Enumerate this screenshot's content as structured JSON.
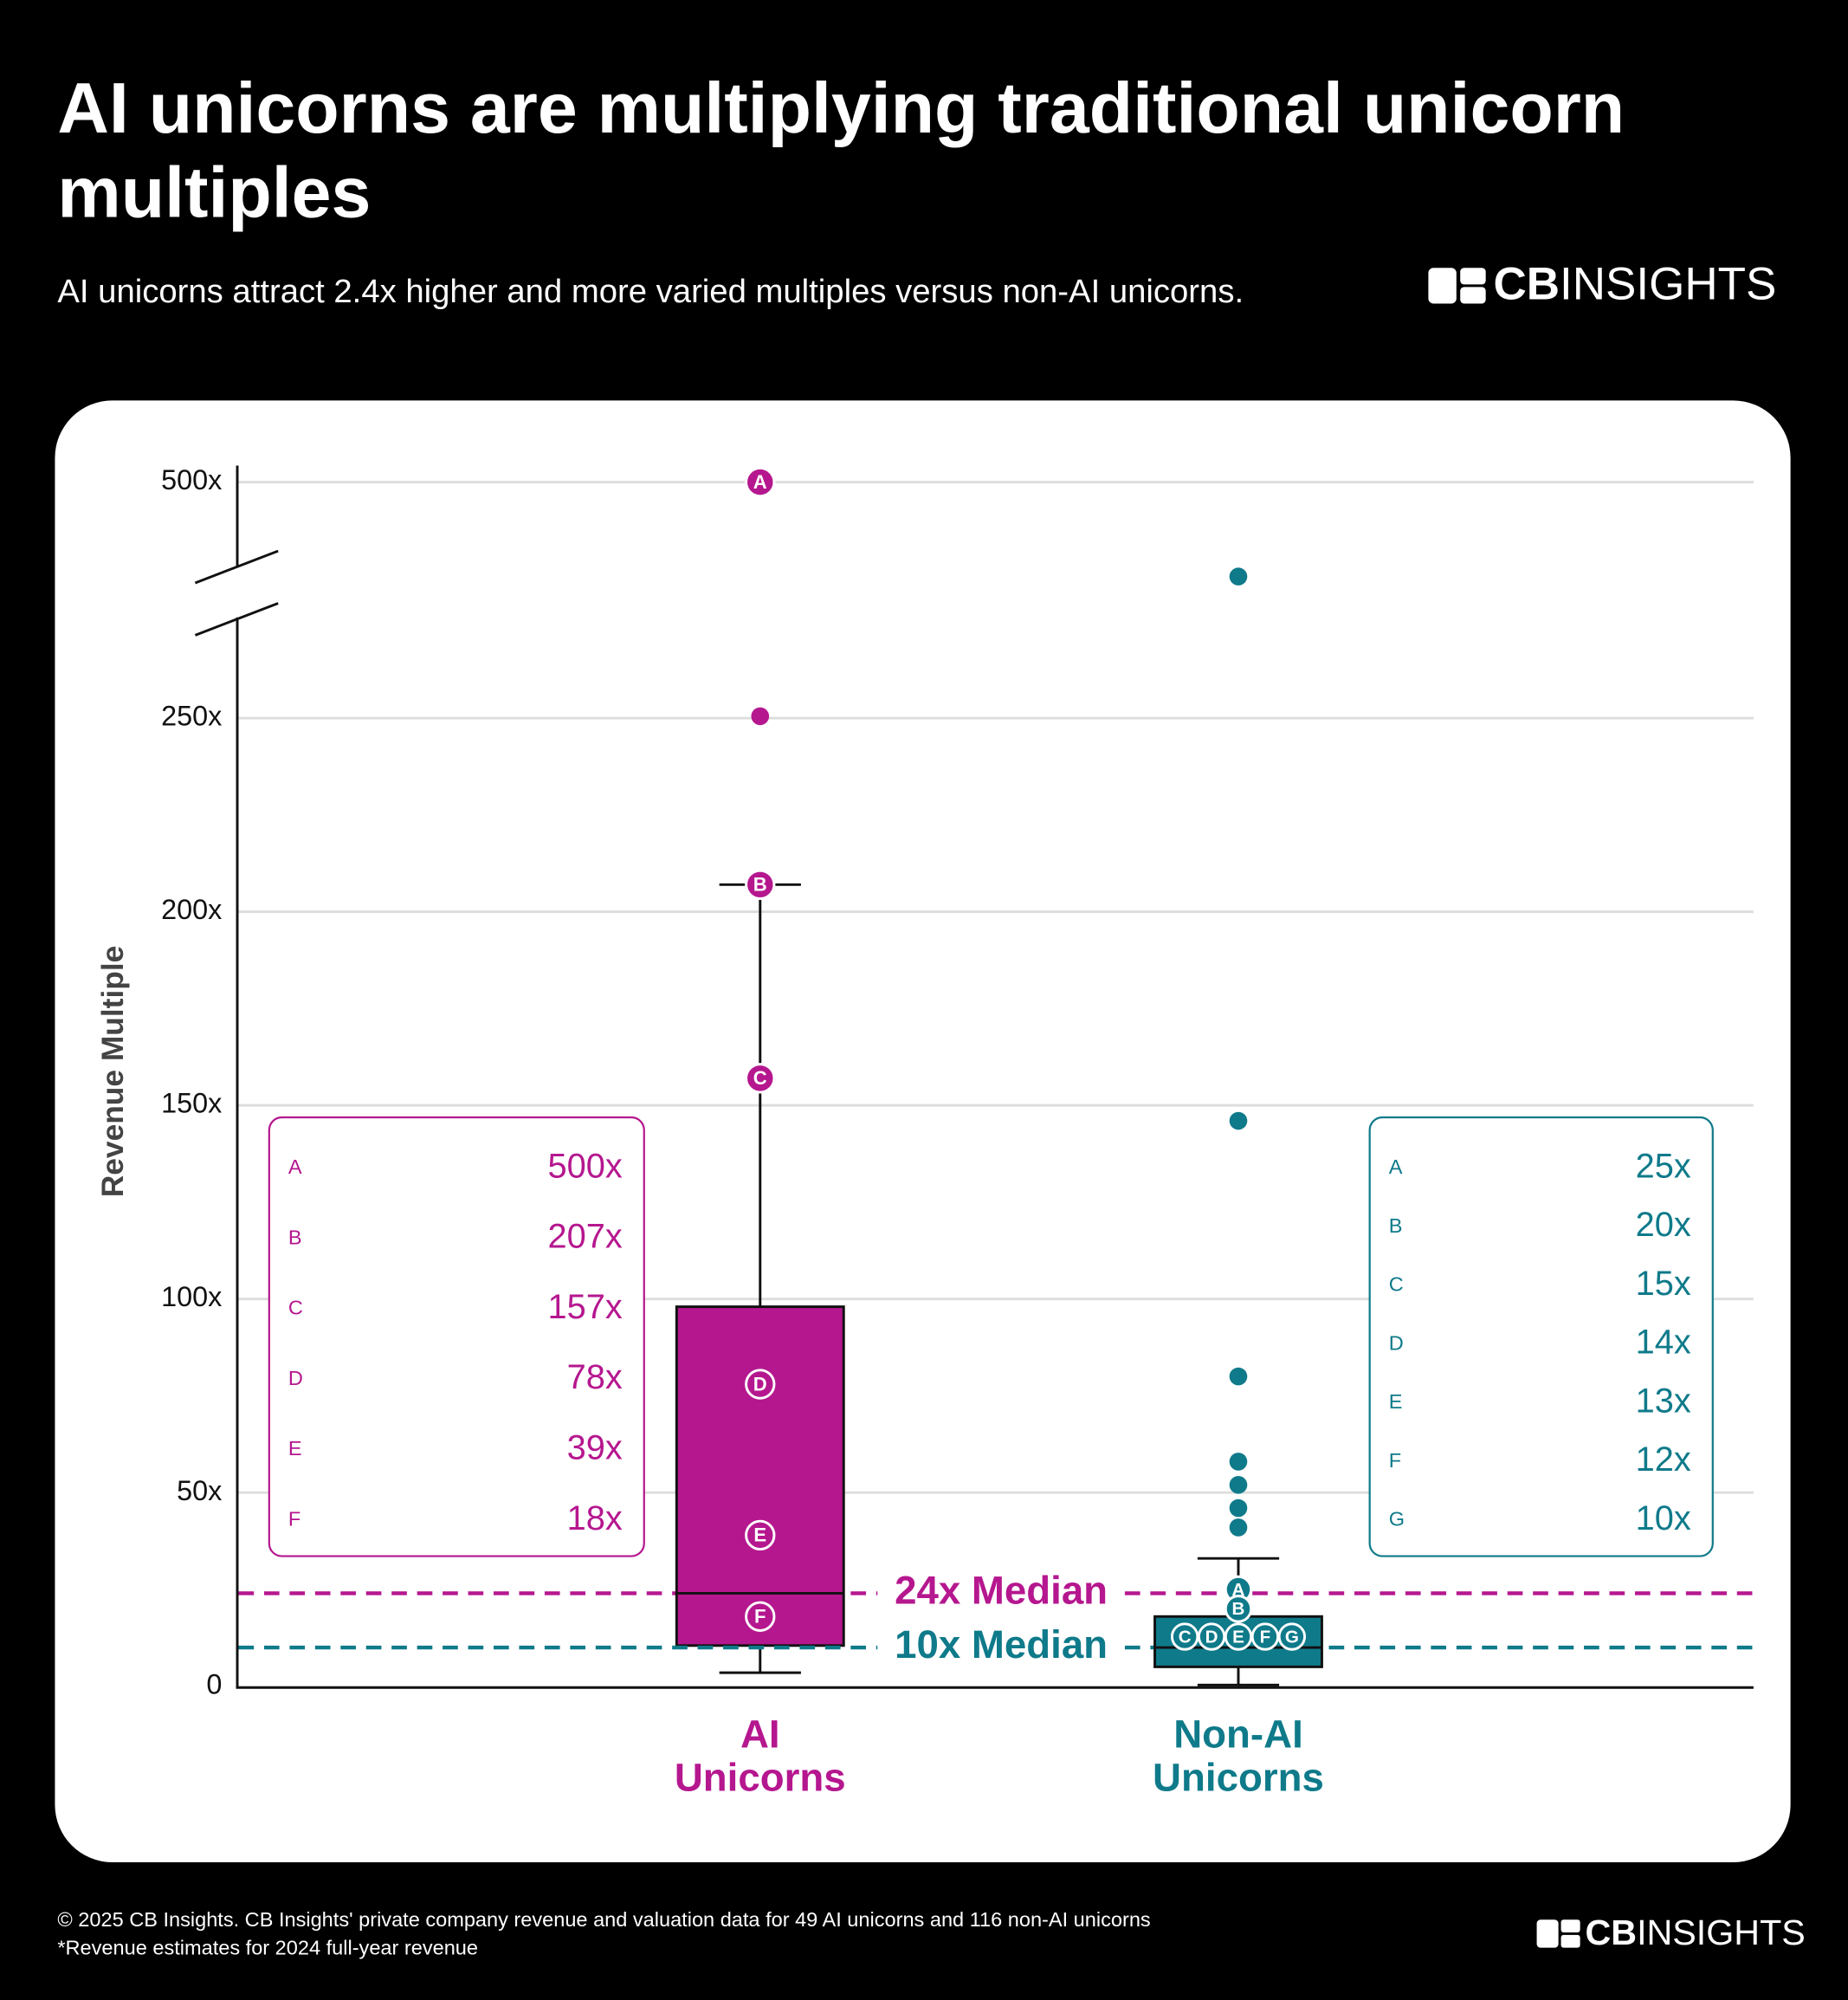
{
  "chart_data": {
    "type": "box",
    "title": "AI unicorns are multiplying traditional unicorn multiples",
    "subtitle": "AI unicorns attract 2.4x higher and more varied multiples versus non-AI unicorns.",
    "y_label": "Revenue Multiple",
    "ylim": [
      0,
      500
    ],
    "yticks": [
      0,
      {
        "value": 50,
        "label": "50x"
      },
      {
        "value": 100,
        "label": "100x"
      },
      {
        "value": 150,
        "label": "150x"
      },
      {
        "value": 200,
        "label": "200x"
      },
      {
        "value": 250,
        "label": "250x"
      },
      {
        "value": 500,
        "label": "500x"
      }
    ],
    "axis_break": true,
    "grid": true,
    "series": [
      {
        "name": "AI Unicorns",
        "color": "#b5178f",
        "whisker_low": 3.5,
        "q1": 10.5,
        "median": 24,
        "q3": 98,
        "whisker_high": 207,
        "median_label": "24x Median",
        "outliers": [
          500,
          252
        ],
        "highlights": {
          "letters": [
            "A",
            "B",
            "C",
            "D",
            "E",
            "F"
          ],
          "values": [
            500,
            207,
            157,
            78,
            39,
            18
          ],
          "value_labels": [
            "500x",
            "207x",
            "157x",
            "78x",
            "39x",
            "18x"
          ]
        }
      },
      {
        "name": "Non-AI Unicorns",
        "color": "#0f7a8a",
        "whisker_low": 0.3,
        "q1": 5,
        "median": 10,
        "q3": 18,
        "whisker_high": 33,
        "median_label": "10x Median",
        "outliers": [
          400,
          146,
          80,
          58,
          52,
          46,
          41
        ],
        "highlights": {
          "letters": [
            "A",
            "B",
            "C",
            "D",
            "E",
            "F",
            "G"
          ],
          "values": [
            25,
            20,
            15,
            14,
            13,
            12,
            10
          ],
          "value_labels": [
            "25x",
            "20x",
            "15x",
            "14x",
            "13x",
            "12x",
            "10x"
          ]
        }
      }
    ]
  },
  "logo": {
    "bold": "CB",
    "light": "INSIGHTS"
  },
  "footer": {
    "source": "© 2025 CB Insights. CB Insights' private company revenue and valuation data for 49 AI unicorns and 116 non-AI unicorns",
    "note": "*Revenue estimates for 2024 full-year revenue"
  }
}
